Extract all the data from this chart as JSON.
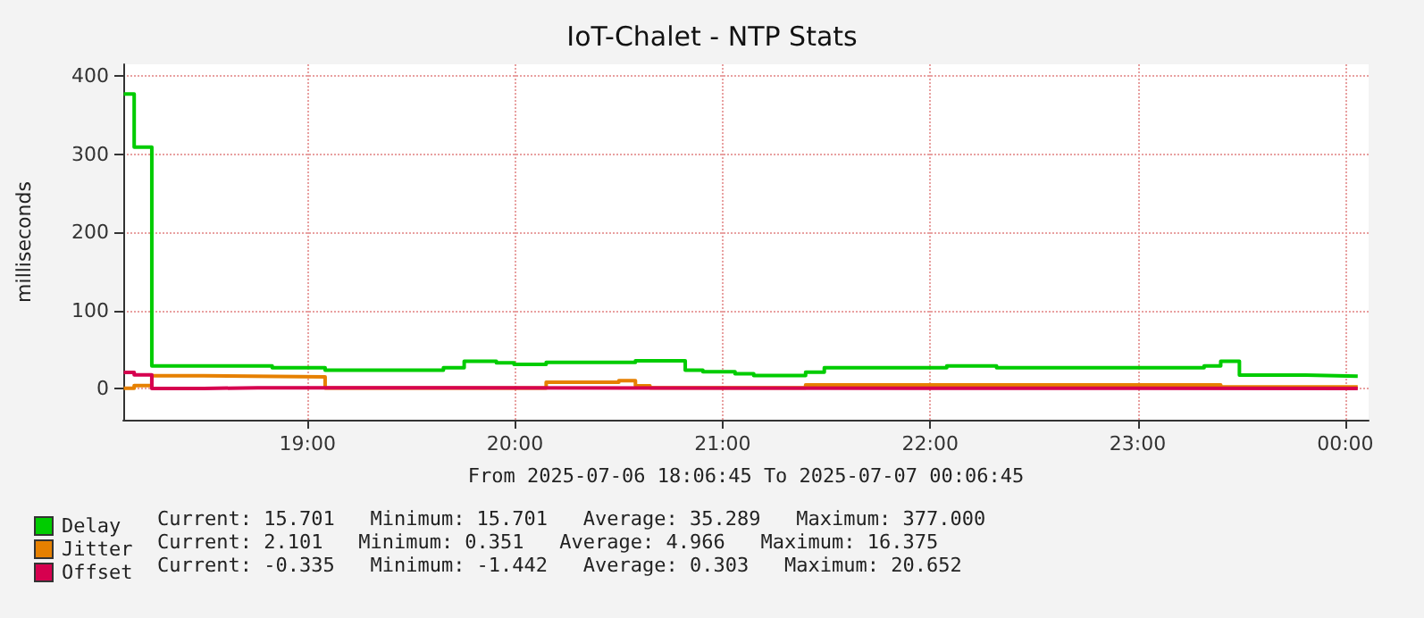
{
  "chart_data": {
    "type": "step",
    "title": "IoT-Chalet - NTP Stats",
    "xlabel": "From 2025-07-06 18:06:45 To 2025-07-07 00:06:45",
    "ylabel": "milliseconds",
    "xlim": [
      18.1125,
      24.1125
    ],
    "ylim": [
      -40,
      415
    ],
    "xticks": [
      {
        "value": 19,
        "label": "19:00"
      },
      {
        "value": 20,
        "label": "20:00"
      },
      {
        "value": 21,
        "label": "21:00"
      },
      {
        "value": 22,
        "label": "22:00"
      },
      {
        "value": 23,
        "label": "23:00"
      },
      {
        "value": 24,
        "label": "00:00"
      }
    ],
    "yticks": [
      0,
      100,
      200,
      300,
      400
    ],
    "grid": true,
    "legend": "bottom left",
    "series": [
      {
        "name": "Delay",
        "color": "#00cc00",
        "x": [
          18.115,
          18.165,
          18.25,
          18.83,
          19.085,
          19.655,
          19.755,
          19.91,
          19.995,
          20.15,
          20.58,
          20.82,
          20.905,
          21.06,
          21.15,
          21.4,
          21.49,
          22.08,
          22.32,
          23.32,
          23.4,
          23.49,
          23.81,
          24.06
        ],
        "values": [
          377,
          309,
          29,
          26.5,
          23.5,
          26.5,
          35,
          33,
          31,
          33.5,
          35.5,
          23.5,
          21.5,
          19,
          16.6,
          21,
          26.5,
          29,
          26.5,
          29,
          35,
          17.3,
          15.7,
          15.7
        ]
      },
      {
        "name": "Jitter",
        "color": "#e68000",
        "x": [
          18.115,
          18.165,
          18.25,
          18.5,
          19.085,
          20.15,
          20.5,
          20.58,
          20.65,
          21.4,
          23.4,
          24.06
        ],
        "values": [
          0.4,
          3.8,
          16.4,
          15,
          0.5,
          8,
          10,
          3.5,
          1,
          4.5,
          2.1,
          2.1
        ]
      },
      {
        "name": "Offset",
        "color": "#d6004f",
        "x": [
          18.115,
          18.165,
          18.25,
          18.5,
          18.76,
          24.06
        ],
        "values": [
          20.6,
          17.5,
          0,
          1,
          0,
          -0.3
        ]
      }
    ],
    "annotations": [
      "Current: 15.701   Minimum: 15.701   Average: 35.289   Maximum: 377.000",
      "Current: 2.101   Minimum: 0.351   Average: 4.966   Maximum: 16.375",
      "Current: -0.335   Minimum: -1.442   Average: 0.303   Maximum: 20.652"
    ]
  }
}
